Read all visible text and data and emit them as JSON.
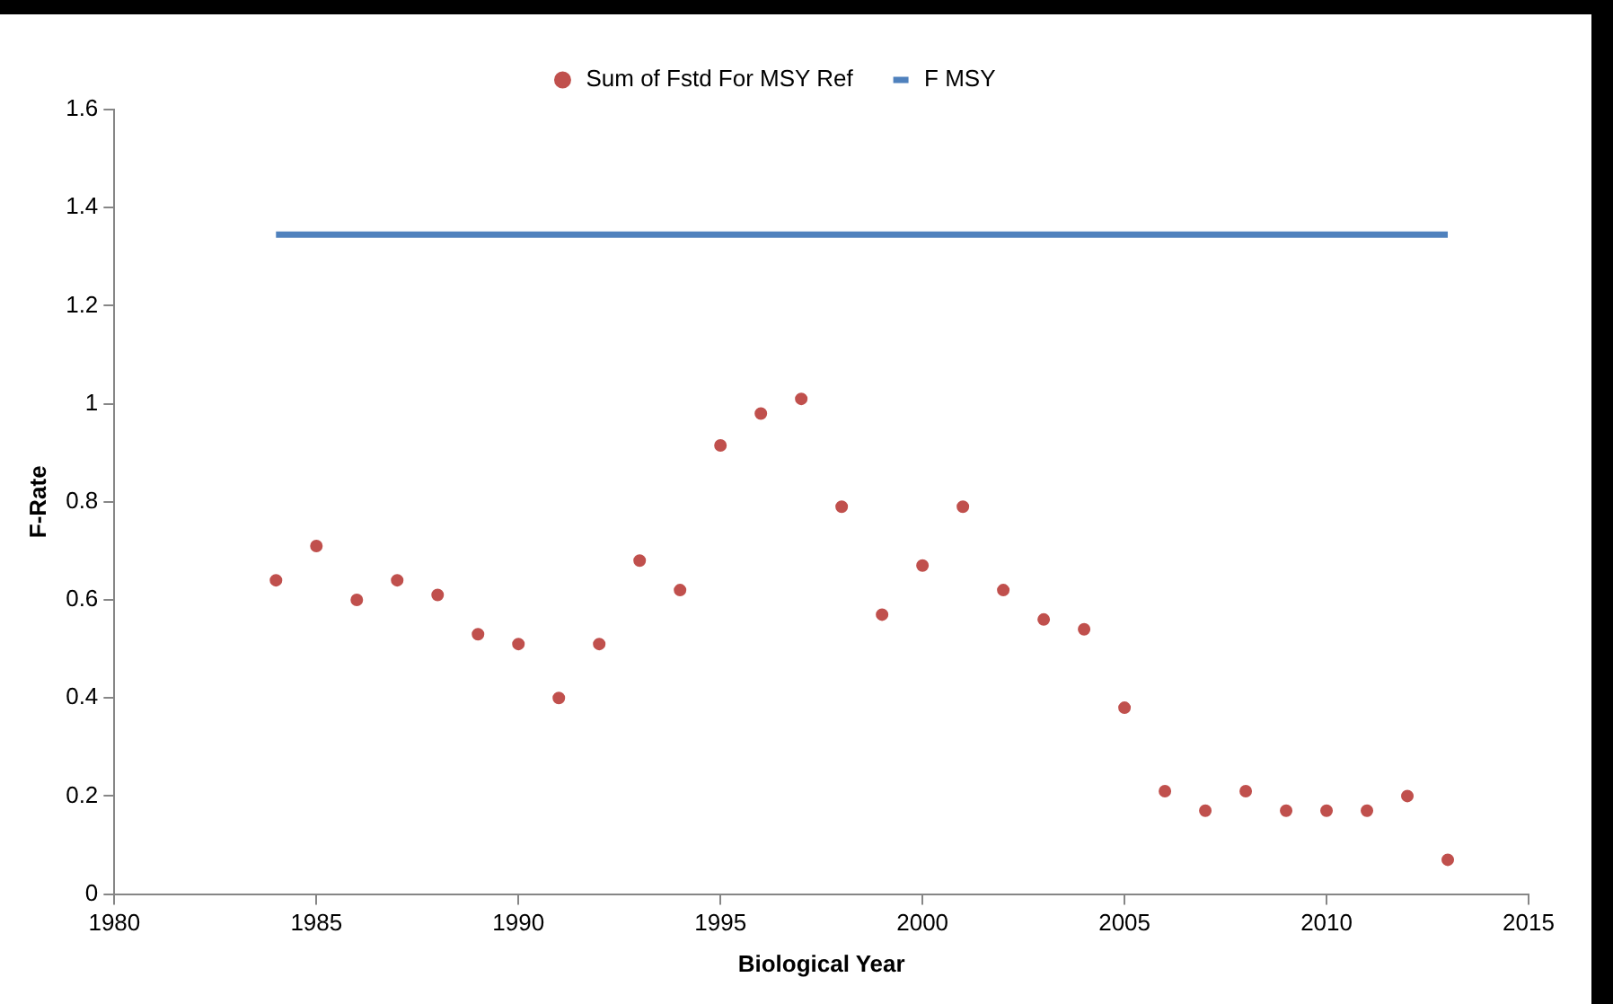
{
  "chart_data": {
    "type": "scatter",
    "xlabel": "Biological Year",
    "ylabel": "F-Rate",
    "xlim": [
      1980,
      2015
    ],
    "xticks": [
      1980,
      1985,
      1990,
      1995,
      2000,
      2005,
      2010,
      2015
    ],
    "ylim": [
      0,
      1.6
    ],
    "yticks": [
      0,
      {
        "value": 0.2,
        "label": "0.2"
      },
      {
        "value": 0.4,
        "label": "0.4"
      },
      {
        "value": 0.6,
        "label": "0.6"
      },
      {
        "value": 0.8,
        "label": "0.8"
      },
      1,
      {
        "value": 1.2,
        "label": "1.2"
      },
      {
        "value": 1.4,
        "label": "1.4"
      },
      {
        "value": 1.6,
        "label": "1.6"
      }
    ],
    "grid": false,
    "legend": "top",
    "series": [
      {
        "name": "Sum of Fstd For MSY Ref",
        "type": "scatter",
        "marker": "circle",
        "color": "#c0504d",
        "x": [
          1984,
          1985,
          1986,
          1987,
          1988,
          1989,
          1990,
          1991,
          1992,
          1993,
          1994,
          1995,
          1996,
          1997,
          1998,
          1999,
          2000,
          2001,
          2002,
          2003,
          2004,
          2005,
          2006,
          2007,
          2008,
          2009,
          2010,
          2011,
          2012,
          2013
        ],
        "values": [
          0.64,
          0.71,
          0.6,
          0.64,
          0.61,
          0.53,
          0.51,
          0.4,
          0.51,
          0.68,
          0.62,
          0.915,
          0.98,
          1.01,
          0.79,
          0.57,
          0.67,
          0.79,
          0.62,
          0.56,
          0.54,
          0.38,
          0.21,
          0.17,
          0.21,
          0.17,
          0.17,
          0.17,
          0.2,
          0.07
        ]
      },
      {
        "name": "F MSY",
        "type": "line",
        "marker": "none",
        "color": "#4f81bd",
        "line_style": "solid",
        "x": [
          1984,
          2013
        ],
        "values": [
          1.345,
          1.345
        ]
      }
    ]
  }
}
